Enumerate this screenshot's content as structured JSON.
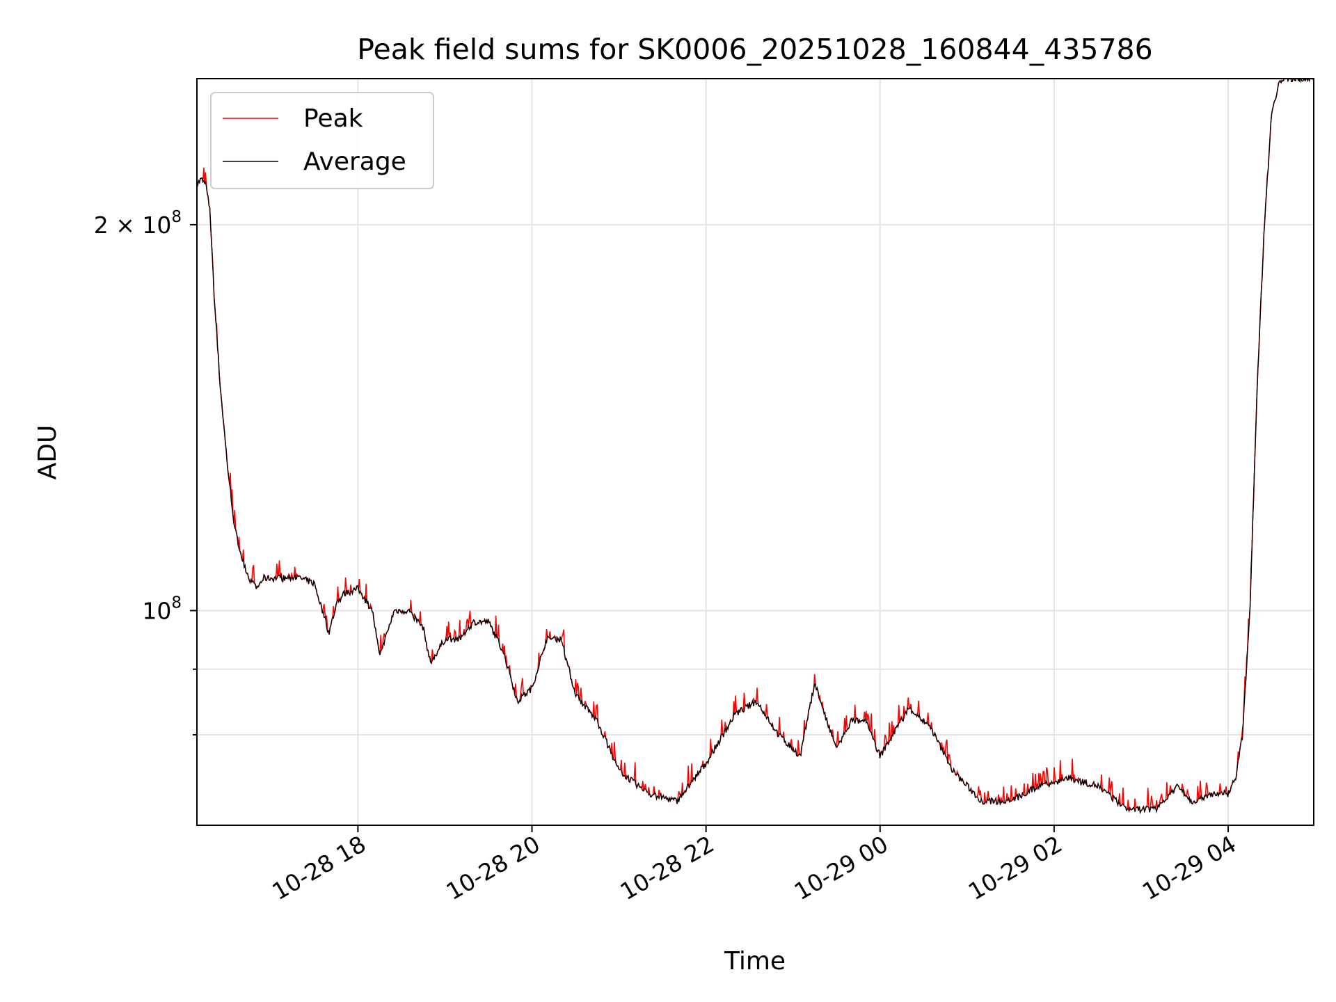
{
  "chart_data": {
    "type": "line",
    "title": "Peak field sums for SK0006_20251028_160844_435786",
    "xlabel": "Time",
    "ylabel": "ADU",
    "y_scale": "log",
    "grid": true,
    "legend_position": "upper-left",
    "xlim": [
      "2025-10-28T16:09",
      "2025-10-29T04:59"
    ],
    "ylim": [
      68000000,
      260000000
    ],
    "x_ticks": [
      {
        "value": "2025-10-28T18:00",
        "label": "10-28 18"
      },
      {
        "value": "2025-10-28T20:00",
        "label": "10-28 20"
      },
      {
        "value": "2025-10-28T22:00",
        "label": "10-28 22"
      },
      {
        "value": "2025-10-29T00:00",
        "label": "10-29 00"
      },
      {
        "value": "2025-10-29T02:00",
        "label": "10-29 02"
      },
      {
        "value": "2025-10-29T04:00",
        "label": "10-29 04"
      }
    ],
    "y_major_ticks": [
      {
        "value": 100000000,
        "base": "10",
        "exp": "8",
        "coef": ""
      },
      {
        "value": 200000000,
        "base": "10",
        "exp": "8",
        "coef": "2 × "
      }
    ],
    "y_minor_gridlines": [
      80000000,
      90000000
    ],
    "series": [
      {
        "name": "Peak",
        "color": "#ff0000"
      },
      {
        "name": "Average",
        "color": "#000000"
      }
    ],
    "x": [
      "2025-10-28T16:09",
      "2025-10-28T16:12",
      "2025-10-28T16:15",
      "2025-10-28T16:18",
      "2025-10-28T16:21",
      "2025-10-28T16:25",
      "2025-10-28T16:30",
      "2025-10-28T16:35",
      "2025-10-28T16:40",
      "2025-10-28T16:45",
      "2025-10-28T16:50",
      "2025-10-28T16:55",
      "2025-10-28T17:00",
      "2025-10-28T17:10",
      "2025-10-28T17:20",
      "2025-10-28T17:30",
      "2025-10-28T17:40",
      "2025-10-28T17:45",
      "2025-10-28T17:50",
      "2025-10-28T18:00",
      "2025-10-28T18:10",
      "2025-10-28T18:15",
      "2025-10-28T18:25",
      "2025-10-28T18:35",
      "2025-10-28T18:45",
      "2025-10-28T18:50",
      "2025-10-28T19:00",
      "2025-10-28T19:10",
      "2025-10-28T19:20",
      "2025-10-28T19:30",
      "2025-10-28T19:40",
      "2025-10-28T19:50",
      "2025-10-28T20:00",
      "2025-10-28T20:10",
      "2025-10-28T20:20",
      "2025-10-28T20:30",
      "2025-10-28T20:45",
      "2025-10-28T21:00",
      "2025-10-28T21:20",
      "2025-10-28T21:40",
      "2025-10-28T22:00",
      "2025-10-28T22:20",
      "2025-10-28T22:35",
      "2025-10-28T22:50",
      "2025-10-28T23:05",
      "2025-10-28T23:15",
      "2025-10-28T23:20",
      "2025-10-28T23:30",
      "2025-10-28T23:40",
      "2025-10-28T23:50",
      "2025-10-29T00:00",
      "2025-10-29T00:20",
      "2025-10-29T00:35",
      "2025-10-29T00:50",
      "2025-10-29T01:10",
      "2025-10-29T01:30",
      "2025-10-29T01:50",
      "2025-10-29T02:10",
      "2025-10-29T02:30",
      "2025-10-29T02:50",
      "2025-10-29T03:10",
      "2025-10-29T03:25",
      "2025-10-29T03:35",
      "2025-10-29T03:50",
      "2025-10-29T04:00",
      "2025-10-29T04:05",
      "2025-10-29T04:10",
      "2025-10-29T04:15",
      "2025-10-29T04:20",
      "2025-10-29T04:25",
      "2025-10-29T04:30",
      "2025-10-29T04:35",
      "2025-10-29T04:40",
      "2025-10-29T04:45",
      "2025-10-29T04:50",
      "2025-10-29T04:59"
    ],
    "y": [
      215000000,
      217000000,
      215000000,
      205000000,
      175000000,
      150000000,
      130000000,
      116000000,
      110000000,
      106000000,
      104000000,
      106000000,
      106000000,
      106000000,
      106000000,
      105000000,
      96000000,
      101000000,
      103000000,
      104000000,
      100000000,
      92000000,
      100000000,
      100000000,
      97000000,
      91000000,
      95000000,
      95000000,
      98000000,
      98000000,
      93000000,
      85000000,
      87000000,
      95000000,
      95000000,
      86000000,
      82000000,
      75000000,
      72000000,
      71000000,
      76000000,
      83000000,
      85000000,
      80000000,
      77000000,
      88000000,
      84000000,
      78000000,
      82000000,
      82000000,
      77000000,
      84000000,
      81000000,
      75000000,
      71000000,
      71000000,
      73000000,
      74000000,
      73000000,
      70000000,
      70000000,
      73000000,
      71000000,
      72000000,
      72000000,
      74000000,
      80000000,
      100000000,
      150000000,
      200000000,
      245000000,
      258000000,
      260000000,
      260000000,
      260000000,
      260000000
    ]
  }
}
